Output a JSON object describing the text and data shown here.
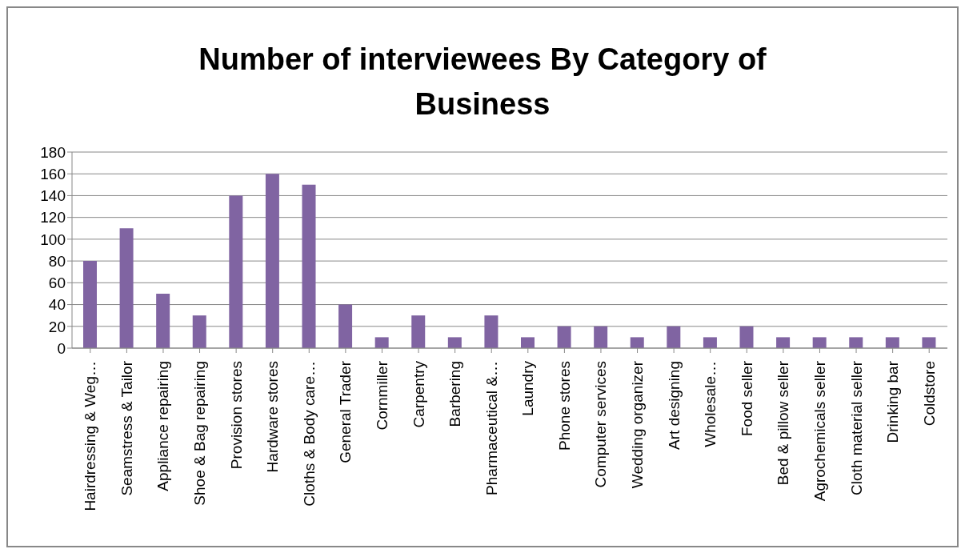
{
  "chart_data": {
    "type": "bar",
    "title": "Number of interviewees By Category  of Business",
    "categories": [
      "Hairdressing & Weg…",
      "Seamstress & Tailor",
      "Appliance repairing",
      "Shoe & Bag repairing",
      "Provision stores",
      "Hardware stores",
      "Cloths & Body care…",
      "General Trader",
      "Cornmiller",
      "Carpentry",
      "Barbering",
      "Pharmaceutical &…",
      "Laundry",
      "Phone stores",
      "Computer services",
      "Wedding organizer",
      "Art designing",
      "Wholesale…",
      "Food seller",
      "Bed & pillow seller",
      "Agrochemicals seller",
      "Cloth material seller",
      "Drinking bar",
      "Coldstore"
    ],
    "values": [
      80,
      110,
      50,
      30,
      140,
      160,
      150,
      40,
      10,
      30,
      10,
      30,
      10,
      20,
      20,
      10,
      20,
      10,
      20,
      10,
      10,
      10,
      10,
      10
    ],
    "color": "#8064a2",
    "ylim": [
      0,
      180
    ],
    "yticks": [
      0,
      20,
      40,
      60,
      80,
      100,
      120,
      140,
      160,
      180
    ],
    "grid": "y",
    "legend": false
  }
}
